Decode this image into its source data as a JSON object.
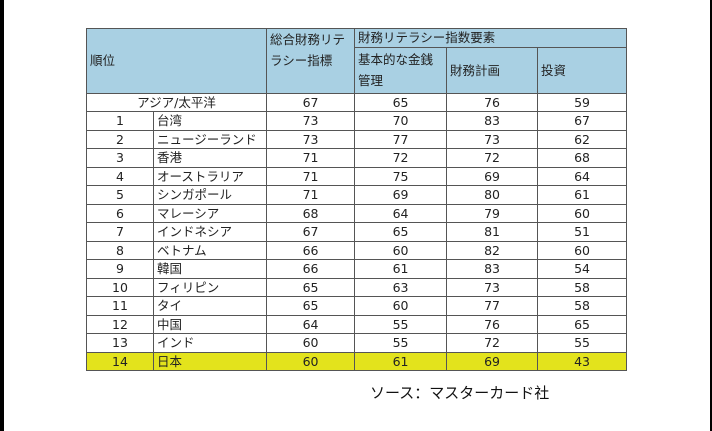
{
  "header": {
    "rank": "順位",
    "overall": "総合財務リテラシー指標",
    "components": "財務リテラシー指数要素",
    "basic": "基本的な金銭管理",
    "planning": "財務計画",
    "investing": "投資"
  },
  "region_row": {
    "label": "アジア/太平洋",
    "overall": "67",
    "basic": "65",
    "planning": "76",
    "investing": "59"
  },
  "rows": [
    {
      "rank": "1",
      "country": "台湾",
      "overall": "73",
      "basic": "70",
      "planning": "83",
      "investing": "67"
    },
    {
      "rank": "2",
      "country": "ニュージーランド",
      "overall": "73",
      "basic": "77",
      "planning": "73",
      "investing": "62"
    },
    {
      "rank": "3",
      "country": "香港",
      "overall": "71",
      "basic": "72",
      "planning": "72",
      "investing": "68"
    },
    {
      "rank": "4",
      "country": "オーストラリア",
      "overall": "71",
      "basic": "75",
      "planning": "69",
      "investing": "64"
    },
    {
      "rank": "5",
      "country": "シンガポール",
      "overall": "71",
      "basic": "69",
      "planning": "80",
      "investing": "61"
    },
    {
      "rank": "6",
      "country": "マレーシア",
      "overall": "68",
      "basic": "64",
      "planning": "79",
      "investing": "60"
    },
    {
      "rank": "7",
      "country": "インドネシア",
      "overall": "67",
      "basic": "65",
      "planning": "81",
      "investing": "51"
    },
    {
      "rank": "8",
      "country": "ベトナム",
      "overall": "66",
      "basic": "60",
      "planning": "82",
      "investing": "60"
    },
    {
      "rank": "9",
      "country": "韓国",
      "overall": "66",
      "basic": "61",
      "planning": "83",
      "investing": "54"
    },
    {
      "rank": "10",
      "country": "フィリピン",
      "overall": "65",
      "basic": "63",
      "planning": "73",
      "investing": "58"
    },
    {
      "rank": "11",
      "country": "タイ",
      "overall": "65",
      "basic": "60",
      "planning": "77",
      "investing": "58"
    },
    {
      "rank": "12",
      "country": "中国",
      "overall": "64",
      "basic": "55",
      "planning": "76",
      "investing": "65"
    },
    {
      "rank": "13",
      "country": "インド",
      "overall": "60",
      "basic": "55",
      "planning": "72",
      "investing": "55"
    },
    {
      "rank": "14",
      "country": "日本",
      "overall": "60",
      "basic": "61",
      "planning": "69",
      "investing": "43"
    }
  ],
  "highlight_color": "#e3e31c",
  "source": "ソース：マスターカード社"
}
